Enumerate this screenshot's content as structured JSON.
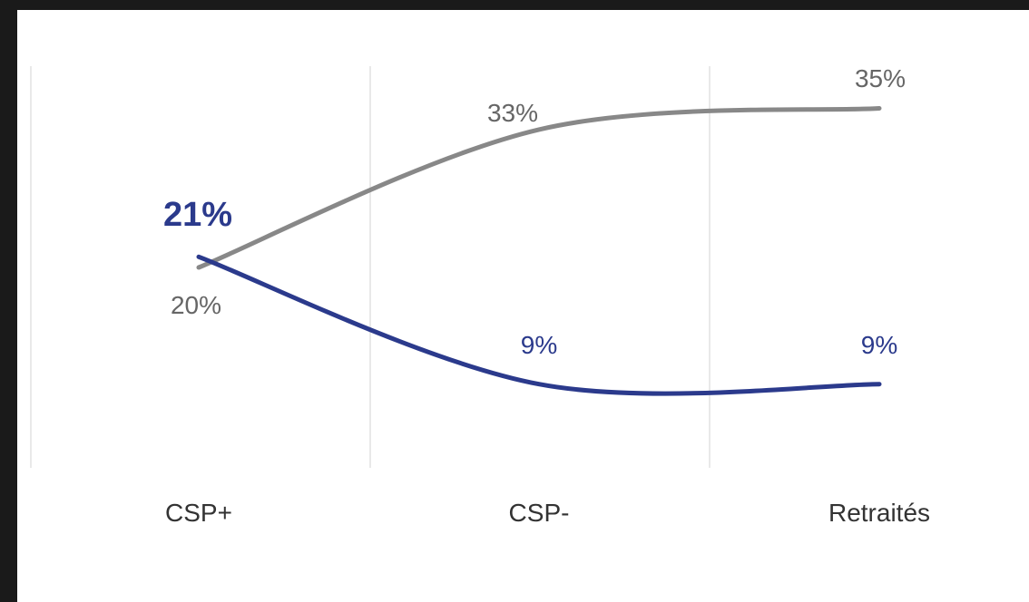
{
  "chart_data": {
    "type": "line",
    "categories": [
      "CSP+",
      "CSP-",
      "Retraités"
    ],
    "series": [
      {
        "values": [
          20,
          33,
          35
        ],
        "color": "#888888",
        "labels": [
          "20%",
          "33%",
          "35%"
        ]
      },
      {
        "values": [
          21,
          9,
          9
        ],
        "color": "#2b3a8c",
        "labels": [
          "21%",
          "9%",
          "9%"
        ]
      }
    ],
    "title": "",
    "xlabel": "",
    "ylabel": "",
    "grid": "vertical",
    "legend": "none"
  }
}
